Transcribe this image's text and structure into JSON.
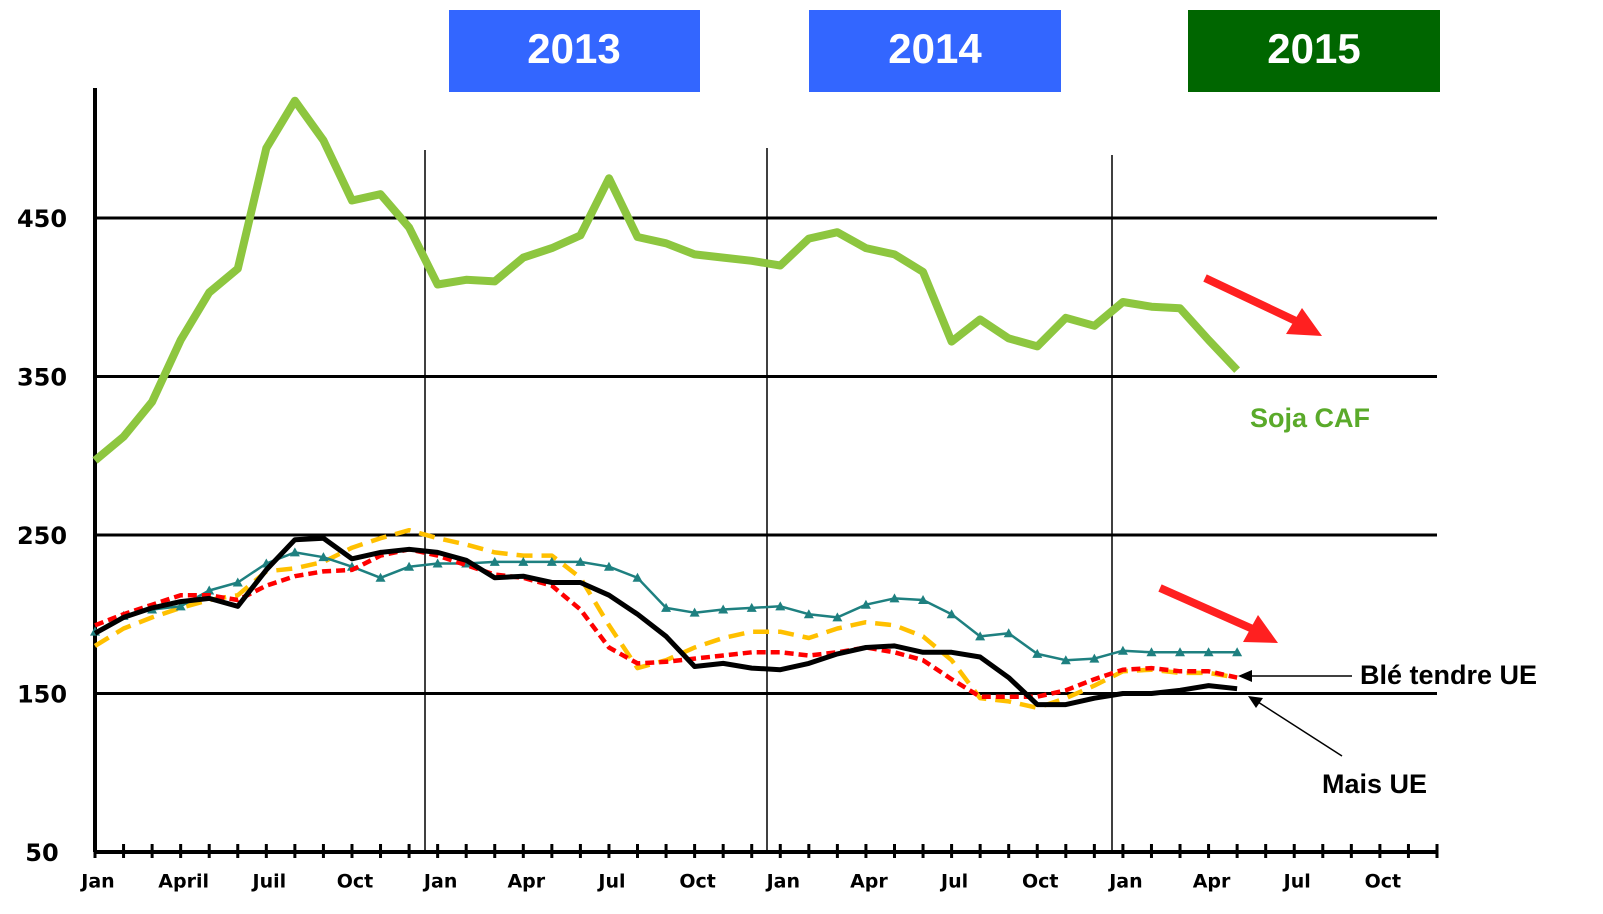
{
  "chart_data": {
    "type": "line",
    "year_labels": [
      "2013",
      "2014",
      "2015"
    ],
    "categories": [
      "Jan",
      null,
      null,
      "April",
      null,
      null,
      "Juil",
      null,
      null,
      "Oct",
      null,
      null,
      "Jan",
      null,
      null,
      "Apr",
      null,
      null,
      "Jul",
      null,
      null,
      "Oct",
      null,
      null,
      "Jan",
      null,
      null,
      "Apr",
      null,
      null,
      "Jul",
      null,
      null,
      "Oct",
      null,
      null,
      "Jan",
      null,
      null,
      "Apr",
      null,
      null,
      "Jul",
      null,
      null,
      "Oct",
      null,
      null
    ],
    "ylim": [
      50,
      532
    ],
    "yticks": [
      50,
      150,
      250,
      350,
      450
    ],
    "grid": true,
    "series": [
      {
        "name": "Soja CAF",
        "color": "#8dc63f",
        "style": "solid",
        "values": [
          297,
          312,
          334,
          373,
          403,
          418,
          494,
          524,
          499,
          461,
          465,
          444,
          408,
          411,
          410,
          425,
          431,
          439,
          475,
          438,
          434,
          427,
          425,
          423,
          420,
          437,
          441,
          431,
          427,
          416,
          372,
          386,
          374,
          369,
          387,
          382,
          397,
          394,
          393,
          373,
          354,
          null,
          null,
          null,
          null,
          null,
          null,
          null
        ]
      },
      {
        "color": "#ffc000",
        "style": "dashed",
        "values": [
          180,
          191,
          198,
          204,
          209,
          212,
          227,
          229,
          233,
          242,
          248,
          253,
          248,
          244,
          239,
          237,
          237,
          223,
          193,
          166,
          171,
          179,
          185,
          189,
          189,
          185,
          191,
          195,
          193,
          186,
          171,
          147,
          145,
          141,
          147,
          155,
          164,
          165,
          163,
          163,
          160,
          null,
          null,
          null,
          null,
          null,
          null,
          null
        ]
      },
      {
        "color": "#1e8080",
        "style": "triangles",
        "values": [
          189,
          199,
          203,
          205,
          215,
          220,
          232,
          239,
          236,
          230,
          223,
          230,
          232,
          232,
          233,
          233,
          233,
          233,
          230,
          223,
          204,
          201,
          203,
          204,
          205,
          200,
          198,
          206,
          210,
          209,
          200,
          186,
          188,
          175,
          171,
          172,
          177,
          176,
          176,
          176,
          176,
          null,
          null,
          null,
          null,
          null,
          null,
          null
        ]
      },
      {
        "name": "Blé tendre UE",
        "color": "#ff0000",
        "style": "dotted",
        "values": [
          193,
          200,
          206,
          212,
          212,
          209,
          218,
          224,
          227,
          228,
          237,
          241,
          237,
          231,
          225,
          223,
          218,
          203,
          179,
          169,
          170,
          172,
          174,
          176,
          176,
          174,
          176,
          179,
          176,
          171,
          159,
          148,
          148,
          148,
          152,
          159,
          165,
          166,
          164,
          164,
          160,
          null,
          null,
          null,
          null,
          null,
          null,
          null
        ]
      },
      {
        "name": "Mais UE",
        "color": "#000000",
        "style": "solid-thin",
        "values": [
          188,
          198,
          204,
          208,
          210,
          205,
          228,
          247,
          248,
          235,
          239,
          241,
          239,
          234,
          223,
          224,
          220,
          220,
          212,
          200,
          186,
          167,
          169,
          166,
          165,
          169,
          175,
          179,
          180,
          176,
          176,
          173,
          160,
          143,
          143,
          147,
          150,
          150,
          152,
          155,
          153,
          null,
          null,
          null,
          null,
          null,
          null,
          null
        ]
      }
    ]
  }
}
